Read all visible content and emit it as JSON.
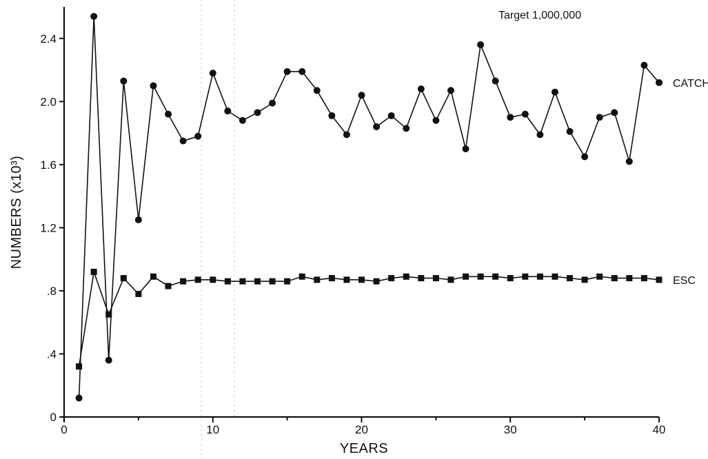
{
  "chart_data": {
    "type": "line",
    "annotation": "Target 1,000,000",
    "xlabel": "YEARS",
    "ylabel": "NUMBERS (x10³)",
    "xlim": [
      0,
      40
    ],
    "ylim": [
      0,
      2.6
    ],
    "x_ticks": [
      0,
      10,
      20,
      30,
      40
    ],
    "x_tick_labels": [
      "0",
      "10",
      "20",
      "30",
      "40"
    ],
    "y_ticks": [
      0,
      0.4,
      0.8,
      1.2,
      1.6,
      2.0,
      2.4
    ],
    "y_tick_labels": [
      "0",
      ".4",
      ".8",
      "1.2",
      "1.6",
      "2.0",
      "2.4"
    ],
    "grid": false,
    "x": [
      1,
      2,
      3,
      4,
      5,
      6,
      7,
      8,
      9,
      10,
      11,
      12,
      13,
      14,
      15,
      16,
      17,
      18,
      19,
      20,
      21,
      22,
      23,
      24,
      25,
      26,
      27,
      28,
      29,
      30,
      31,
      32,
      33,
      34,
      35,
      36,
      37,
      38,
      39,
      40
    ],
    "series": [
      {
        "name": "CATCH",
        "marker": "circle",
        "values": [
          0.12,
          2.54,
          0.36,
          2.13,
          1.25,
          2.1,
          1.92,
          1.75,
          1.78,
          2.18,
          1.94,
          1.88,
          1.93,
          1.99,
          2.19,
          2.19,
          2.07,
          1.91,
          1.79,
          2.04,
          1.84,
          1.91,
          1.83,
          2.08,
          1.88,
          2.07,
          1.7,
          2.36,
          2.13,
          1.9,
          1.92,
          1.79,
          2.06,
          1.81,
          1.65,
          1.9,
          1.93,
          1.62,
          2.23,
          2.12
        ]
      },
      {
        "name": "ESC",
        "marker": "square",
        "values": [
          0.32,
          0.92,
          0.65,
          0.88,
          0.78,
          0.89,
          0.83,
          0.86,
          0.87,
          0.87,
          0.86,
          0.86,
          0.86,
          0.86,
          0.86,
          0.89,
          0.87,
          0.88,
          0.87,
          0.87,
          0.86,
          0.88,
          0.89,
          0.88,
          0.88,
          0.87,
          0.89,
          0.89,
          0.89,
          0.88,
          0.89,
          0.89,
          0.89,
          0.88,
          0.87,
          0.89,
          0.88,
          0.88,
          0.88,
          0.87
        ]
      }
    ]
  }
}
